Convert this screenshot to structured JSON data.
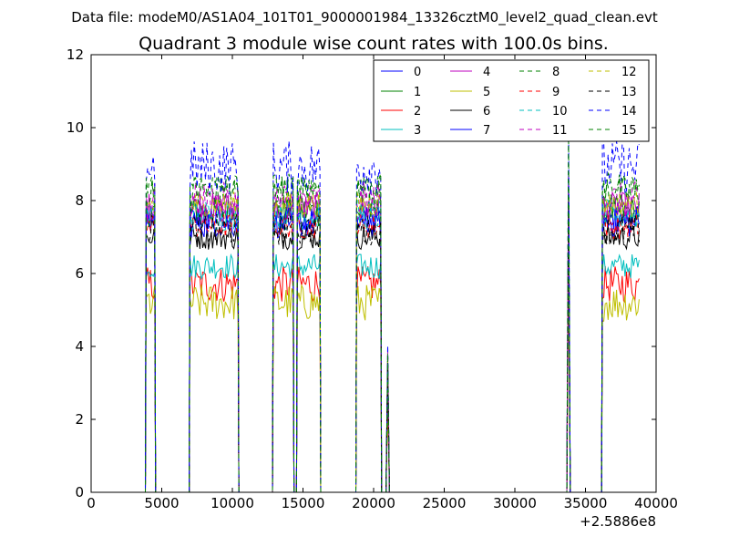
{
  "suptitle": "Data file: modeM0/AS1A04_101T01_9000001984_13326cztM0_level2_quad_clean.evt",
  "chart_data": {
    "type": "line",
    "title": "Quadrant 3 module wise count rates with 100.0s bins.",
    "xlabel": "",
    "ylabel": "",
    "xlim": [
      0,
      40000
    ],
    "ylim": [
      0,
      12
    ],
    "x_offset_label": "+2.5886e8",
    "xticks": [
      0,
      5000,
      10000,
      15000,
      20000,
      25000,
      30000,
      35000,
      40000
    ],
    "yticks": [
      0,
      2,
      4,
      6,
      8,
      10,
      12
    ],
    "grid": false,
    "legend_position": "top-right",
    "legend_columns": 4,
    "segments": [
      {
        "x0": 3900,
        "x1": 4500
      },
      {
        "x0": 7000,
        "x1": 10400
      },
      {
        "x0": 12900,
        "x1": 14300
      },
      {
        "x0": 14600,
        "x1": 16200
      },
      {
        "x0": 18800,
        "x1": 20500
      }
    ],
    "spikes": [
      {
        "x": 21000,
        "peak": 4.5
      },
      {
        "x": 33800,
        "peak": 10.6
      }
    ],
    "tail_segment": {
      "x0": 36200,
      "x1": 38800
    },
    "series": [
      {
        "name": "0",
        "color": "#0000ff",
        "dash": false,
        "level": 7.5
      },
      {
        "name": "1",
        "color": "#008000",
        "dash": false,
        "level": 7.7
      },
      {
        "name": "2",
        "color": "#ff0000",
        "dash": false,
        "level": 5.7
      },
      {
        "name": "3",
        "color": "#00bfbf",
        "dash": false,
        "level": 6.2
      },
      {
        "name": "4",
        "color": "#bf00bf",
        "dash": false,
        "level": 7.8
      },
      {
        "name": "5",
        "color": "#bfbf00",
        "dash": false,
        "level": 5.2
      },
      {
        "name": "6",
        "color": "#000000",
        "dash": false,
        "level": 7.0
      },
      {
        "name": "7",
        "color": "#0000ff",
        "dash": false,
        "level": 7.4
      },
      {
        "name": "8",
        "color": "#008000",
        "dash": true,
        "level": 8.2
      },
      {
        "name": "9",
        "color": "#ff0000",
        "dash": true,
        "level": 7.3
      },
      {
        "name": "10",
        "color": "#00bfbf",
        "dash": true,
        "level": 7.6
      },
      {
        "name": "11",
        "color": "#bf00bf",
        "dash": true,
        "level": 8.0
      },
      {
        "name": "12",
        "color": "#bfbf00",
        "dash": true,
        "level": 7.9
      },
      {
        "name": "13",
        "color": "#000000",
        "dash": true,
        "level": 7.2
      },
      {
        "name": "14",
        "color": "#0000ff",
        "dash": true,
        "level": 8.9
      },
      {
        "name": "15",
        "color": "#008000",
        "dash": true,
        "level": 8.4
      }
    ]
  }
}
